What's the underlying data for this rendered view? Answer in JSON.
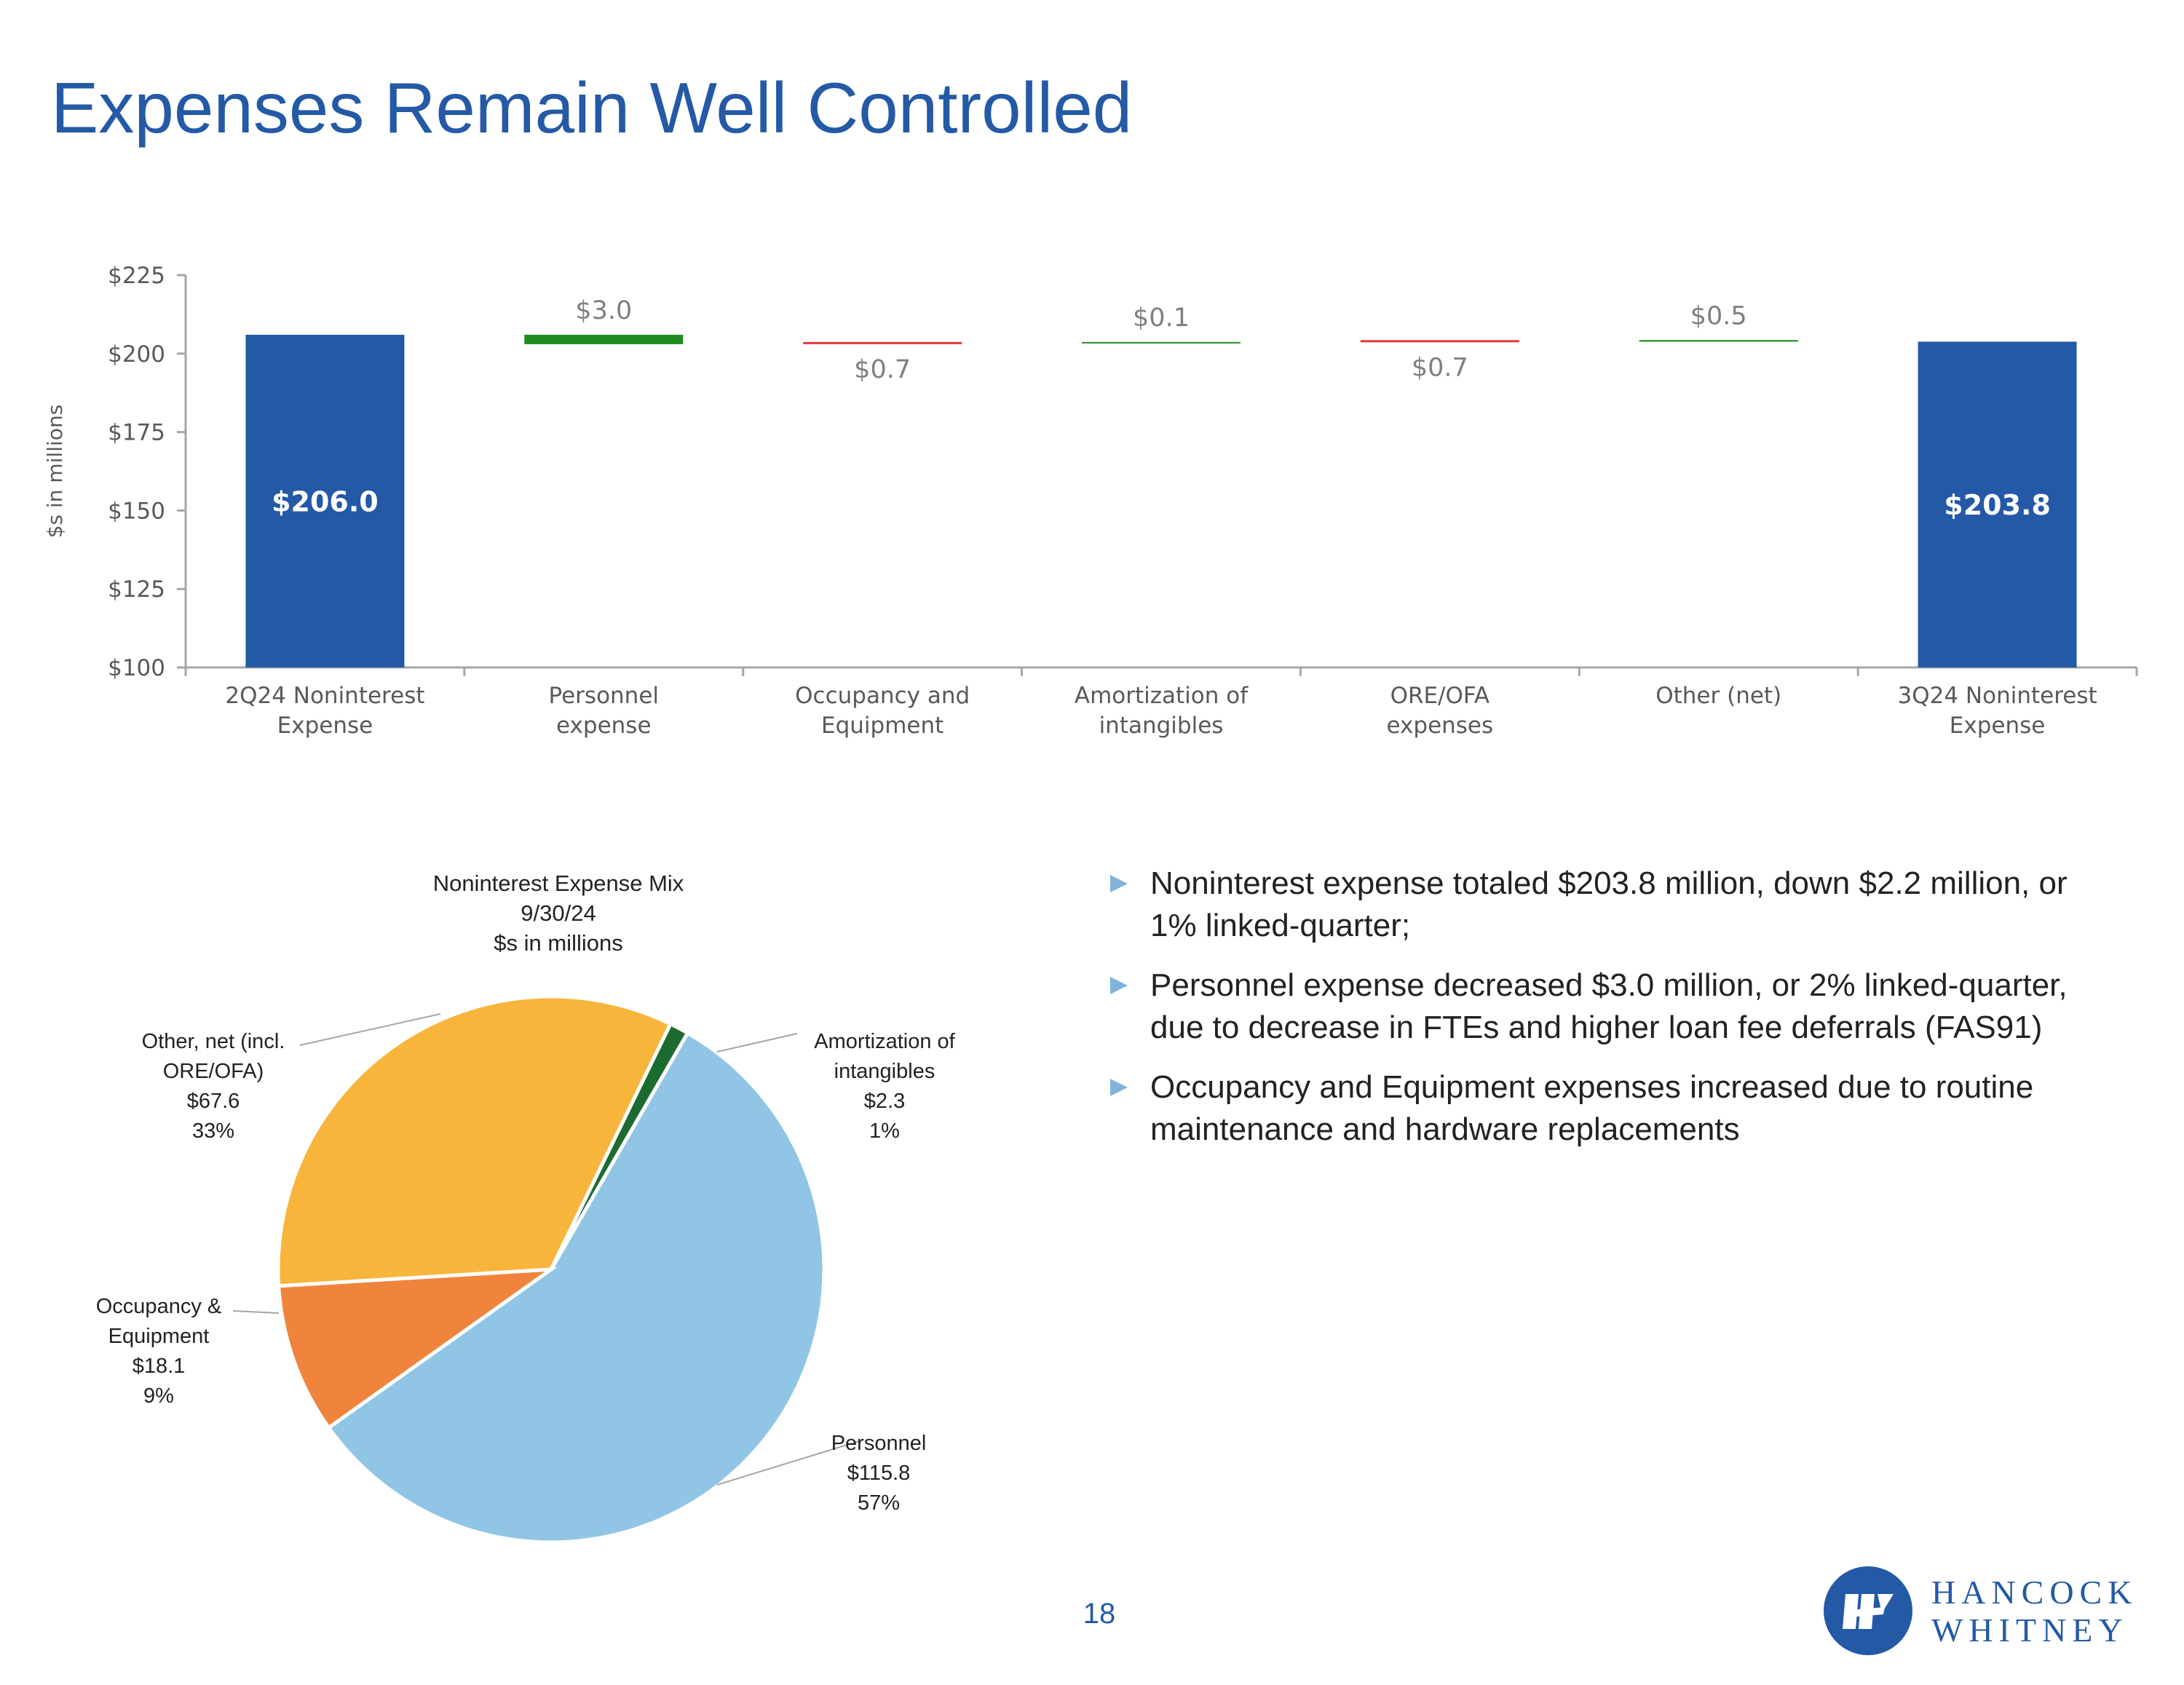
{
  "slide": {
    "title": "Expenses Remain Well Controlled",
    "page_number": "18",
    "logo_text": [
      "HANCOCK",
      "WHITNEY"
    ]
  },
  "colors": {
    "title": "#2459a6",
    "total_bar": "#2459a6",
    "decrease": "#218b21",
    "increase": "#e03a3a",
    "pie_personnel": "#91c5e5",
    "pie_other": "#f8b53c",
    "pie_occupancy": "#f0843c",
    "pie_amortization": "#1c6b2f"
  },
  "bullets": [
    "Noninterest expense totaled $203.8 million, down $2.2 million, or 1% linked-quarter;",
    "Personnel expense decreased $3.0 million, or 2% linked-quarter, due to decrease in FTEs and higher loan fee deferrals (FAS91)",
    "Occupancy and Equipment expenses increased due to routine maintenance and hardware replacements"
  ],
  "chart_data": [
    {
      "type": "bar",
      "subtype": "waterfall",
      "ylabel": "$s in millions",
      "ylim": [
        100,
        225
      ],
      "yticks": [
        "$100",
        "$125",
        "$150",
        "$175",
        "$200",
        "$225"
      ],
      "grid": false,
      "categories": [
        [
          "2Q24 Noninterest",
          "Expense"
        ],
        [
          "Personnel",
          "expense"
        ],
        [
          "Occupancy and",
          "Equipment"
        ],
        [
          "Amortization of",
          "intangibles"
        ],
        [
          "ORE/OFA",
          "expenses"
        ],
        [
          "Other (net)"
        ],
        [
          "3Q24 Noninterest",
          "Expense"
        ]
      ],
      "bars": [
        {
          "kind": "total",
          "value": 206.0,
          "label": "$206.0"
        },
        {
          "kind": "decrease",
          "start": 206.0,
          "end": 203.0,
          "label": "$3.0"
        },
        {
          "kind": "increase",
          "start": 203.0,
          "end": 203.7,
          "label": "$0.7"
        },
        {
          "kind": "decrease",
          "start": 203.7,
          "end": 203.6,
          "label": "$0.1"
        },
        {
          "kind": "increase",
          "start": 203.6,
          "end": 204.3,
          "label": "$0.7"
        },
        {
          "kind": "decrease",
          "start": 204.3,
          "end": 203.8,
          "label": "$0.5"
        },
        {
          "kind": "total",
          "value": 203.8,
          "label": "$203.8"
        }
      ]
    },
    {
      "type": "pie",
      "title": [
        "Noninterest Expense Mix",
        "9/30/24",
        "$s in millions"
      ],
      "slices": [
        {
          "name": "Personnel",
          "value": 115.8,
          "percent": "57%",
          "label": [
            "Personnel",
            "$115.8",
            "57%"
          ],
          "color": "#91c5e5"
        },
        {
          "name": "Occupancy & Equipment",
          "value": 18.1,
          "percent": "9%",
          "label": [
            "Occupancy &",
            "Equipment",
            "$18.1",
            "9%"
          ],
          "color": "#f0843c"
        },
        {
          "name": "Other, net (incl. ORE/OFA)",
          "value": 67.6,
          "percent": "33%",
          "label": [
            "Other, net (incl.",
            "ORE/OFA)",
            "$67.6",
            "33%"
          ],
          "color": "#f8b53c"
        },
        {
          "name": "Amortization of intangibles",
          "value": 2.3,
          "percent": "1%",
          "label": [
            "Amortization of",
            "intangibles",
            "$2.3",
            "1%"
          ],
          "color": "#1c6b2f"
        }
      ]
    }
  ]
}
